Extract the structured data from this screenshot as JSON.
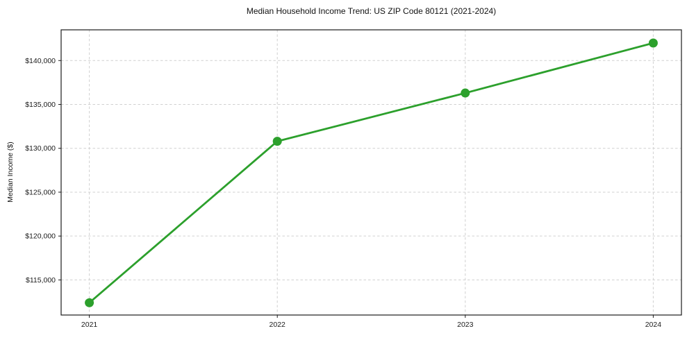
{
  "chart_data": {
    "type": "line",
    "title": "Median Household Income Trend: US ZIP Code 80121 (2021-2024)",
    "xlabel": "",
    "ylabel": "Median Income ($)",
    "x": [
      2021,
      2022,
      2023,
      2024
    ],
    "values": [
      112400,
      130800,
      136300,
      142000
    ],
    "series_name": "Median Household Income",
    "xticks": {
      "values": [
        2021,
        2022,
        2023,
        2024
      ],
      "labels": [
        "2021",
        "2022",
        "2023",
        "2024"
      ]
    },
    "yticks": {
      "values": [
        115000,
        120000,
        125000,
        130000,
        135000,
        140000
      ],
      "labels": [
        "$115,000",
        "$120,000",
        "$125,000",
        "$130,000",
        "$135,000",
        "$140,000"
      ]
    },
    "xlim": [
      2020.85,
      2024.15
    ],
    "ylim": [
      111000,
      143500
    ],
    "grid": true,
    "grid_style": "dashed",
    "legend": false,
    "line_color": "#2ca02c",
    "marker": "circle",
    "grid_color": "#d0d0d0",
    "axis_color": "#1a1a1a",
    "text_color": "#1a1a1a",
    "background": "#ffffff"
  }
}
